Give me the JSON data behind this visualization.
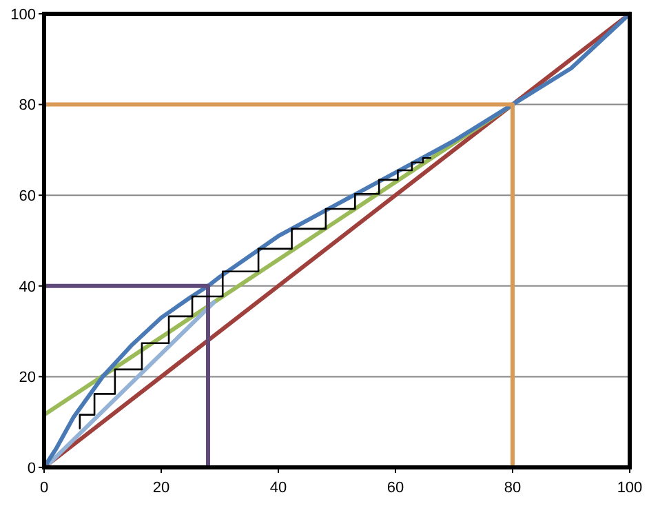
{
  "chart_data": {
    "type": "line",
    "xlim": [
      0,
      100
    ],
    "ylim": [
      0,
      100
    ],
    "xticks": [
      0,
      20,
      40,
      60,
      80,
      100
    ],
    "yticks": [
      0,
      20,
      40,
      60,
      80,
      100
    ],
    "grid": "y",
    "marker": "none",
    "line_style": "solid",
    "series": [
      {
        "color": "#a0403c",
        "x": [
          0,
          100
        ],
        "values": [
          0,
          100
        ]
      },
      {
        "color": "#9bbb59",
        "x": [
          0,
          80
        ],
        "values": [
          11.6,
          80
        ]
      },
      {
        "color": "#95b3d7",
        "x": [
          1,
          29
        ],
        "values": [
          1,
          36.4
        ]
      },
      {
        "color": "#4a7ab5",
        "x": [
          0,
          2,
          5,
          10,
          15,
          20,
          25,
          28,
          30,
          40,
          50,
          60,
          70,
          80,
          90,
          100
        ],
        "values": [
          0,
          4,
          11,
          20,
          27,
          33,
          37.5,
          40,
          42,
          51,
          58,
          65,
          72,
          80,
          88,
          100
        ]
      },
      {
        "color": "#604a7b",
        "x": [
          0,
          28,
          28
        ],
        "values": [
          40,
          40,
          0
        ]
      },
      {
        "color": "#d99a55",
        "x": [
          0,
          80,
          80
        ],
        "values": [
          80,
          80,
          0
        ]
      },
      {
        "color": "#000000",
        "x": [
          6.1,
          6.1,
          8.6,
          8.6,
          12.1,
          12.1,
          16.7,
          16.7,
          21.3,
          21.3,
          25.3,
          25.3,
          30.5,
          30.5,
          36.6,
          36.6,
          42.3,
          42.3,
          48.1,
          48.1,
          53.1,
          53.1,
          57.2,
          57.2,
          60.4,
          60.4,
          62.8,
          62.8,
          64.7,
          64.7,
          66
        ],
        "values": [
          8.6,
          11.6,
          11.6,
          16.2,
          16.2,
          21.6,
          21.6,
          27.4,
          27.4,
          33.3,
          33.3,
          37.7,
          37.7,
          43.2,
          43.2,
          48.2,
          48.2,
          52.6,
          52.6,
          57,
          57,
          60.3,
          60.3,
          63.4,
          63.4,
          65.5,
          65.5,
          67.2,
          67.2,
          68.2,
          68.2
        ]
      }
    ]
  }
}
